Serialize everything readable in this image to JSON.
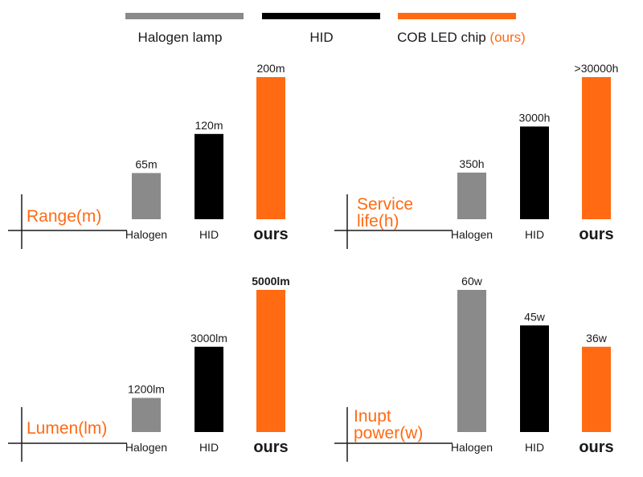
{
  "colors": {
    "halogen": "#8a8a8a",
    "hid": "#000000",
    "ours": "#ff6a13",
    "axis": "#1a1a1a",
    "title": "#ff6a13",
    "text": "#1a1a1a"
  },
  "legend": {
    "halogen": "Halogen lamp",
    "hid": "HID",
    "ours_main": "COB LED chip ",
    "ours_tag": "(ours)"
  },
  "chart_data": [
    {
      "type": "bar",
      "title_lines": [
        "Range(m)"
      ],
      "categories": [
        "Halogen",
        "HID",
        "ours"
      ],
      "values": [
        65,
        120,
        200
      ],
      "value_labels": [
        "65m",
        "120m",
        "200m"
      ]
    },
    {
      "type": "bar",
      "title_lines": [
        "Service",
        "life(h)"
      ],
      "categories": [
        "Halogen",
        "HID",
        "ours"
      ],
      "values": [
        350,
        3000,
        30000
      ],
      "value_labels": [
        "350h",
        "3000h",
        ">30000h"
      ]
    },
    {
      "type": "bar",
      "title_lines": [
        "Lumen(lm)"
      ],
      "categories": [
        "Halogen",
        "HID",
        "ours"
      ],
      "values": [
        1200,
        3000,
        5000
      ],
      "value_labels": [
        "1200lm",
        "3000lm",
        "5000lm"
      ]
    },
    {
      "type": "bar",
      "title_lines": [
        "Inupt",
        "power(w)"
      ],
      "categories": [
        "Halogen",
        "HID",
        "ours"
      ],
      "values": [
        60,
        45,
        36
      ],
      "value_labels": [
        "60w",
        "45w",
        "36w"
      ]
    }
  ]
}
